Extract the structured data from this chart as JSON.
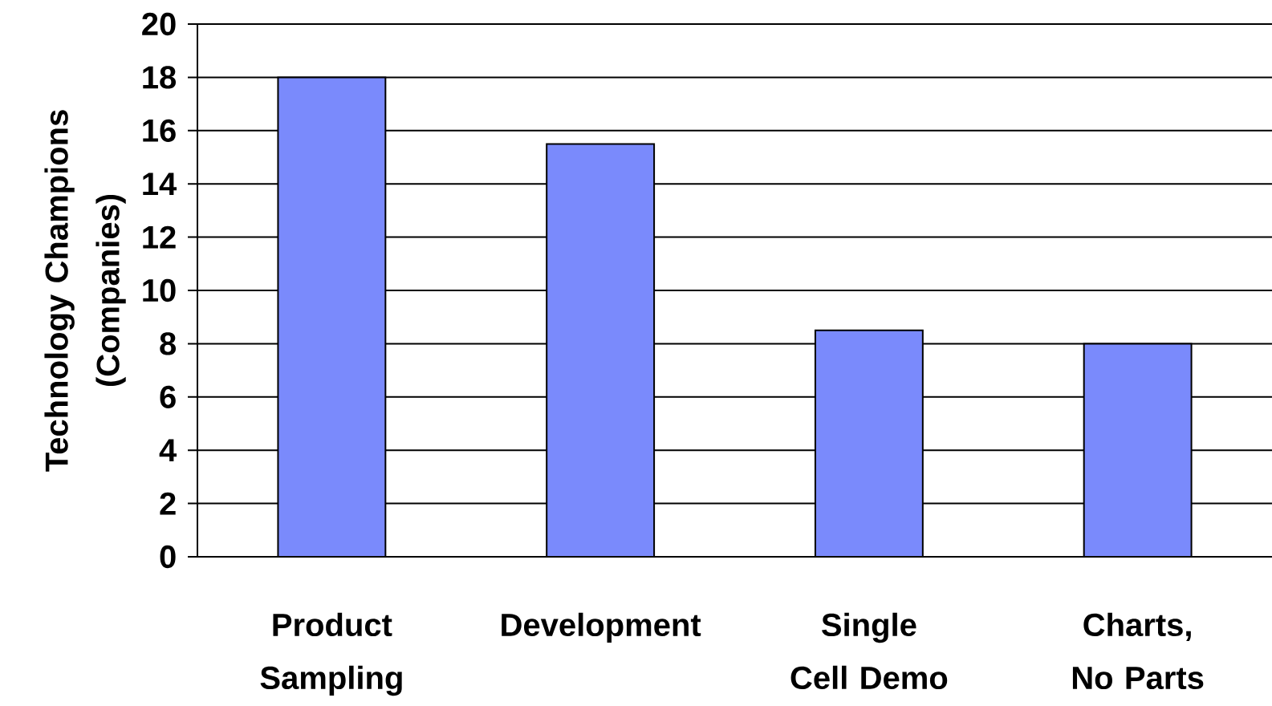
{
  "chart_data": {
    "type": "bar",
    "ylabel": "Technology Champions (Companies)",
    "categories": [
      "Product Sampling",
      "Development",
      "Single Cell Demo",
      "Charts, No Parts"
    ],
    "values": [
      18,
      15.5,
      8.5,
      8
    ],
    "color": "#7a8afc",
    "ylim": [
      0,
      20
    ],
    "yticks": [
      0,
      2,
      4,
      6,
      8,
      10,
      12,
      14,
      16,
      18,
      20
    ],
    "grid": "y"
  }
}
